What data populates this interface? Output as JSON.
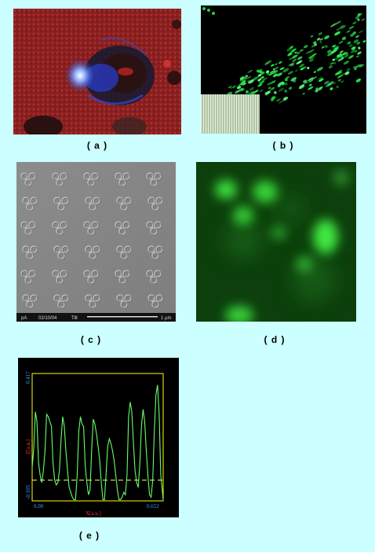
{
  "panels": {
    "a": {
      "caption": "( a )"
    },
    "b": {
      "caption": "( b )"
    },
    "c": {
      "caption": "( c )",
      "sem_bar": {
        "detector": "pA",
        "date": "02/10/04",
        "mode": "Tilt",
        "scale": "1 µm"
      }
    },
    "d": {
      "caption": "( d )"
    },
    "e": {
      "caption": "( e )"
    }
  },
  "chart_data": {
    "type": "line",
    "xlabel": "X[a.u.]",
    "ylabel": "Z[a.u.]",
    "x_ticks": [
      "0.00",
      "0.652"
    ],
    "y_ticks": [
      "0.417",
      "-0.105"
    ],
    "xlim": [
      0,
      0.652
    ],
    "ylim": [
      -0.105,
      0.417
    ],
    "reference_level": -0.02,
    "colors": {
      "line": "#66ff66",
      "frame": "#ffff00",
      "xlabel": "#ff3333",
      "ylabel": "#ff3333",
      "ticks": "#3399ff"
    },
    "x": [
      0.0,
      0.008,
      0.016,
      0.024,
      0.032,
      0.04,
      0.048,
      0.056,
      0.064,
      0.072,
      0.08,
      0.088,
      0.096,
      0.104,
      0.112,
      0.12,
      0.128,
      0.136,
      0.144,
      0.152,
      0.16,
      0.168,
      0.176,
      0.184,
      0.192,
      0.2,
      0.208,
      0.216,
      0.224,
      0.232,
      0.24,
      0.248,
      0.256,
      0.264,
      0.272,
      0.28,
      0.288,
      0.296,
      0.304,
      0.312,
      0.32,
      0.328,
      0.336,
      0.344,
      0.352,
      0.36,
      0.368,
      0.376,
      0.384,
      0.392,
      0.4,
      0.408,
      0.416,
      0.424,
      0.432,
      0.44,
      0.448,
      0.456,
      0.464,
      0.472,
      0.48,
      0.488,
      0.496,
      0.504,
      0.512,
      0.52,
      0.528,
      0.536,
      0.544,
      0.552,
      0.56,
      0.568,
      0.576,
      0.584,
      0.592,
      0.6,
      0.608,
      0.616,
      0.624,
      0.632,
      0.64,
      0.652
    ],
    "y": [
      0.03,
      0.11,
      0.26,
      0.22,
      0.05,
      0.0,
      -0.03,
      0.02,
      0.1,
      0.25,
      0.24,
      0.22,
      0.2,
      0.05,
      -0.02,
      -0.04,
      -0.03,
      0.02,
      0.15,
      0.24,
      0.2,
      0.1,
      0.02,
      -0.05,
      -0.07,
      -0.09,
      -0.1,
      -0.1,
      0.0,
      0.18,
      0.24,
      0.21,
      0.2,
      0.04,
      -0.03,
      -0.08,
      -0.06,
      0.1,
      0.23,
      0.21,
      0.17,
      0.12,
      0.06,
      -0.03,
      -0.1,
      -0.1,
      0.01,
      0.12,
      0.15,
      0.13,
      0.1,
      0.06,
      0.0,
      -0.06,
      -0.1,
      -0.1,
      -0.09,
      -0.07,
      -0.08,
      0.0,
      0.24,
      0.3,
      0.26,
      0.13,
      0.02,
      -0.03,
      -0.05,
      0.05,
      0.2,
      0.27,
      0.22,
      0.1,
      0.0,
      -0.08,
      -0.09,
      -0.02,
      0.18,
      0.33,
      0.37,
      0.25,
      0.0,
      -0.1
    ]
  }
}
